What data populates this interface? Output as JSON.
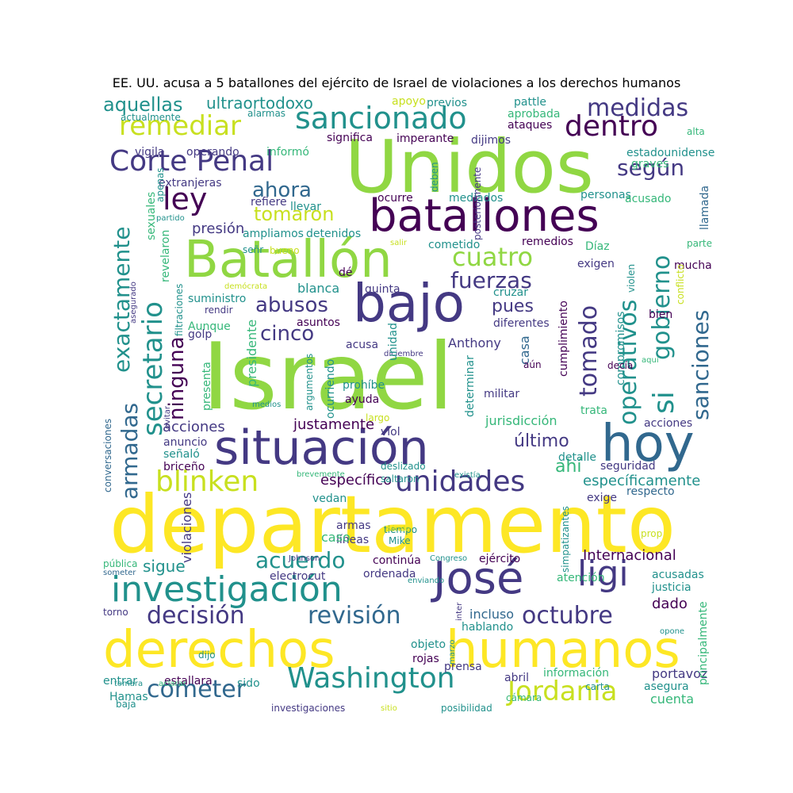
{
  "title": "EE. UU. acusa a 5 batallones del ejército de Israel de violaciones a los derechos humanos",
  "palette": {
    "dark_purple": "#440154",
    "indigo": "#3b528b",
    "navy": "#443983",
    "slate": "#31688e",
    "teal": "#21918c",
    "green": "#35b779",
    "lime": "#90d743",
    "yellow": "#fde725",
    "yellow_green": "#c8e020"
  },
  "words": [
    {
      "text": "Israel",
      "color": "lime"
    },
    {
      "text": "departamento",
      "color": "yellow"
    },
    {
      "text": "derechos",
      "color": "yellow"
    },
    {
      "text": "humanos",
      "color": "yellow"
    },
    {
      "text": "Unidos",
      "color": "lime"
    },
    {
      "text": "batallones",
      "color": "dark_purple"
    },
    {
      "text": "Batallón",
      "color": "lime"
    },
    {
      "text": "situación",
      "color": "navy"
    },
    {
      "text": "bajo",
      "color": "navy"
    },
    {
      "text": "hoy",
      "color": "slate"
    },
    {
      "text": "José",
      "color": "navy"
    },
    {
      "text": "investigación",
      "color": "teal"
    },
    {
      "text": "Washington",
      "color": "teal"
    },
    {
      "text": "sancionado",
      "color": "teal"
    },
    {
      "text": "remediar",
      "color": "yellow_green"
    },
    {
      "text": "Corte Penal",
      "color": "navy"
    },
    {
      "text": "dentro",
      "color": "dark_purple"
    },
    {
      "text": "medidas",
      "color": "navy"
    },
    {
      "text": "ley",
      "color": "dark_purple"
    },
    {
      "text": "ahora",
      "color": "slate"
    },
    {
      "text": "según",
      "color": "navy"
    },
    {
      "text": "tomaron",
      "color": "yellow_green"
    },
    {
      "text": "cuatro",
      "color": "lime"
    },
    {
      "text": "fuerzas",
      "color": "navy"
    },
    {
      "text": "abusos",
      "color": "navy"
    },
    {
      "text": "cinco",
      "color": "navy"
    },
    {
      "text": "unidades",
      "color": "navy"
    },
    {
      "text": "blinken",
      "color": "yellow_green"
    },
    {
      "text": "Jordania",
      "color": "yellow_green"
    },
    {
      "text": "cometer",
      "color": "slate"
    },
    {
      "text": "decisión",
      "color": "navy"
    },
    {
      "text": "revisión",
      "color": "slate"
    },
    {
      "text": "octubre",
      "color": "navy"
    },
    {
      "text": "ligi",
      "color": "navy"
    },
    {
      "text": "acuerdo",
      "color": "teal"
    },
    {
      "text": "aquellas",
      "color": "teal"
    },
    {
      "text": "ultraortodoxo",
      "color": "teal"
    },
    {
      "text": "exactamente",
      "color": "teal"
    },
    {
      "text": "secretario",
      "color": "teal"
    },
    {
      "text": "armadas",
      "color": "slate"
    },
    {
      "text": "ninguna",
      "color": "dark_purple"
    },
    {
      "text": "tomado",
      "color": "navy"
    },
    {
      "text": "operativos",
      "color": "teal"
    },
    {
      "text": "si",
      "color": "teal"
    },
    {
      "text": "gobierno",
      "color": "teal"
    },
    {
      "text": "sanciones",
      "color": "slate"
    },
    {
      "text": "presión",
      "color": "navy"
    },
    {
      "text": "último",
      "color": "navy"
    },
    {
      "text": "ahí",
      "color": "green"
    },
    {
      "text": "específicamente",
      "color": "teal"
    },
    {
      "text": "específico",
      "color": "dark_purple"
    },
    {
      "text": "justamente",
      "color": "dark_purple"
    },
    {
      "text": "acciones",
      "color": "navy"
    },
    {
      "text": "jurisdicción",
      "color": "green"
    },
    {
      "text": "Internacional",
      "color": "dark_purple"
    },
    {
      "text": "sigue",
      "color": "teal"
    },
    {
      "text": "pues",
      "color": "navy"
    },
    {
      "text": "Anthony",
      "color": "navy"
    },
    {
      "text": "casa",
      "color": "slate"
    },
    {
      "text": "presidente",
      "color": "green"
    },
    {
      "text": "incluso",
      "color": "slate"
    },
    {
      "text": "dado",
      "color": "dark_purple"
    },
    {
      "text": "cuenta",
      "color": "green"
    },
    {
      "text": "portavoz",
      "color": "navy"
    },
    {
      "text": "asegura",
      "color": "teal"
    },
    {
      "text": "información",
      "color": "green"
    },
    {
      "text": "abril",
      "color": "navy"
    },
    {
      "text": "prensa",
      "color": "navy"
    },
    {
      "text": "rojas",
      "color": "dark_purple"
    },
    {
      "text": "objeto",
      "color": "teal"
    },
    {
      "text": "hablando",
      "color": "teal"
    },
    {
      "text": "atención",
      "color": "green"
    },
    {
      "text": "acusadas",
      "color": "teal"
    },
    {
      "text": "justicia",
      "color": "teal"
    },
    {
      "text": "electrocut",
      "color": "navy"
    },
    {
      "text": "ordenada",
      "color": "navy"
    },
    {
      "text": "continúa",
      "color": "dark_purple"
    },
    {
      "text": "ejército",
      "color": "dark_purple"
    },
    {
      "text": "líneas",
      "color": "navy"
    },
    {
      "text": "armas",
      "color": "navy"
    },
    {
      "text": "caso",
      "color": "green"
    },
    {
      "text": "vedan",
      "color": "teal"
    },
    {
      "text": "respecto",
      "color": "slate"
    },
    {
      "text": "exige",
      "color": "navy"
    },
    {
      "text": "seguridad",
      "color": "navy"
    },
    {
      "text": "detalle",
      "color": "teal"
    },
    {
      "text": "trata",
      "color": "green"
    },
    {
      "text": "militar",
      "color": "navy"
    },
    {
      "text": "ayuda",
      "color": "dark_purple"
    },
    {
      "text": "prohíbe",
      "color": "teal"
    },
    {
      "text": "acusa",
      "color": "navy"
    },
    {
      "text": "asuntos",
      "color": "dark_purple"
    },
    {
      "text": "diferentes",
      "color": "navy"
    },
    {
      "text": "cruzar",
      "color": "teal"
    },
    {
      "text": "quinta",
      "color": "navy"
    },
    {
      "text": "blanca",
      "color": "teal"
    },
    {
      "text": "remedios",
      "color": "dark_purple"
    },
    {
      "text": "cometido",
      "color": "teal"
    },
    {
      "text": "detenidos",
      "color": "teal"
    },
    {
      "text": "ampliamos",
      "color": "teal"
    },
    {
      "text": "refiere",
      "color": "navy"
    },
    {
      "text": "llevar",
      "color": "teal"
    },
    {
      "text": "ocurre",
      "color": "dark_purple"
    },
    {
      "text": "mediados",
      "color": "teal"
    },
    {
      "text": "personas",
      "color": "teal"
    },
    {
      "text": "acusado",
      "color": "green"
    },
    {
      "text": "estadounidense",
      "color": "teal"
    },
    {
      "text": "graves",
      "color": "green"
    },
    {
      "text": "ataques",
      "color": "dark_purple"
    },
    {
      "text": "dijimos",
      "color": "navy"
    },
    {
      "text": "imperante",
      "color": "dark_purple"
    },
    {
      "text": "significa",
      "color": "dark_purple"
    },
    {
      "text": "informó",
      "color": "green"
    },
    {
      "text": "vigila",
      "color": "navy"
    },
    {
      "text": "operando",
      "color": "navy"
    },
    {
      "text": "extranjeras",
      "color": "navy"
    },
    {
      "text": "apoyo",
      "color": "yellow_green"
    },
    {
      "text": "previos",
      "color": "teal"
    },
    {
      "text": "pattle",
      "color": "teal"
    },
    {
      "text": "aprobada",
      "color": "green"
    },
    {
      "text": "alarmas",
      "color": "teal"
    },
    {
      "text": "actualmente",
      "color": "teal"
    },
    {
      "text": "alta",
      "color": "green"
    },
    {
      "text": "llamada",
      "color": "slate"
    },
    {
      "text": "exigen",
      "color": "navy"
    },
    {
      "text": "Díaz",
      "color": "green"
    },
    {
      "text": "mucha",
      "color": "dark_purple"
    },
    {
      "text": "conflicto",
      "color": "yellow_green"
    },
    {
      "text": "parte",
      "color": "green"
    },
    {
      "text": "bien",
      "color": "dark_purple"
    },
    {
      "text": "acciones",
      "color": "navy"
    },
    {
      "text": "suministro",
      "color": "teal"
    },
    {
      "text": "Aunque",
      "color": "green"
    },
    {
      "text": "golp",
      "color": "navy"
    },
    {
      "text": "rendir",
      "color": "navy"
    },
    {
      "text": "bueno",
      "color": "yellow_green"
    },
    {
      "text": "señr",
      "color": "teal"
    },
    {
      "text": "dé",
      "color": "dark_purple"
    },
    {
      "text": "demócrata",
      "color": "yellow_green"
    },
    {
      "text": "anuncio",
      "color": "navy"
    },
    {
      "text": "señaló",
      "color": "teal"
    },
    {
      "text": "briceño",
      "color": "dark_purple"
    },
    {
      "text": "conversaciones",
      "color": "slate"
    },
    {
      "text": "viol",
      "color": "navy"
    },
    {
      "text": "largo",
      "color": "yellow_green"
    },
    {
      "text": "deslizado",
      "color": "teal"
    },
    {
      "text": "saltaron",
      "color": "teal"
    },
    {
      "text": "brevemente",
      "color": "green"
    },
    {
      "text": "existía",
      "color": "teal"
    },
    {
      "text": "tiempo",
      "color": "teal"
    },
    {
      "text": "Mike",
      "color": "teal"
    },
    {
      "text": "dónde",
      "color": "yellow_green"
    },
    {
      "text": "Johnson",
      "color": "navy"
    },
    {
      "text": "Congreso",
      "color": "teal"
    },
    {
      "text": "enviando",
      "color": "teal"
    },
    {
      "text": "prop",
      "color": "yellow_green"
    },
    {
      "text": "pública",
      "color": "green"
    },
    {
      "text": "someter",
      "color": "slate"
    },
    {
      "text": "torno",
      "color": "navy"
    },
    {
      "text": "dijo",
      "color": "teal"
    },
    {
      "text": "entrar",
      "color": "teal"
    },
    {
      "text": "estallara",
      "color": "dark_purple"
    },
    {
      "text": "sido",
      "color": "teal"
    },
    {
      "text": "Hamas",
      "color": "teal"
    },
    {
      "text": "tomara",
      "color": "teal"
    },
    {
      "text": "aclarar",
      "color": "green"
    },
    {
      "text": "baja",
      "color": "teal"
    },
    {
      "text": "investigaciones",
      "color": "navy"
    },
    {
      "text": "sitio",
      "color": "yellow_green"
    },
    {
      "text": "posibilidad",
      "color": "teal"
    },
    {
      "text": "cámara",
      "color": "green"
    },
    {
      "text": "carta",
      "color": "teal"
    },
    {
      "text": "opone",
      "color": "teal"
    },
    {
      "text": "diciembre",
      "color": "navy"
    },
    {
      "text": "partido",
      "color": "teal"
    },
    {
      "text": "salir",
      "color": "yellow_green"
    },
    {
      "text": "aquí",
      "color": "green"
    },
    {
      "text": "medios",
      "color": "teal"
    },
    {
      "text": "violaciones",
      "color": "navy"
    },
    {
      "text": "simpatizantes",
      "color": "teal"
    },
    {
      "text": "principalmente",
      "color": "green"
    },
    {
      "text": "compromisos",
      "color": "teal"
    },
    {
      "text": "cumplimiento",
      "color": "dark_purple"
    },
    {
      "text": "decía",
      "color": "dark_purple"
    },
    {
      "text": "violen",
      "color": "teal"
    },
    {
      "text": "determinar",
      "color": "teal"
    },
    {
      "text": "aún",
      "color": "dark_purple"
    },
    {
      "text": "argumentos",
      "color": "teal"
    },
    {
      "text": "ocurriendo",
      "color": "teal"
    },
    {
      "text": "unidad",
      "color": "teal"
    },
    {
      "text": "presenta",
      "color": "green"
    },
    {
      "text": "filtraciones",
      "color": "teal"
    },
    {
      "text": "asegurado",
      "color": "navy"
    },
    {
      "text": "evitar",
      "color": "navy"
    },
    {
      "text": "revelaron",
      "color": "green"
    },
    {
      "text": "sexuales",
      "color": "green"
    },
    {
      "text": "apenas",
      "color": "teal"
    },
    {
      "text": "posteriormente",
      "color": "navy"
    },
    {
      "text": "deben",
      "color": "teal"
    },
    {
      "text": "marzo",
      "color": "teal"
    },
    {
      "text": "inter",
      "color": "navy"
    }
  ]
}
